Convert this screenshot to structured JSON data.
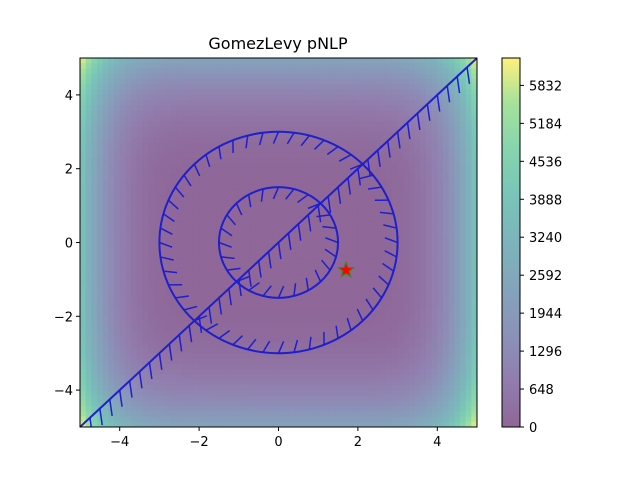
{
  "chart_data": {
    "type": "heatmap",
    "title": "GomezLevy pNLP",
    "xlabel": "",
    "ylabel": "",
    "xlim": [
      -5,
      5
    ],
    "ylim": [
      -5,
      5
    ],
    "x_ticks": [
      -4,
      -2,
      0,
      2,
      4
    ],
    "y_ticks": [
      -4,
      -2,
      0,
      2,
      4
    ],
    "x_tick_labels": [
      "−4",
      "−2",
      "0",
      "2",
      "4"
    ],
    "y_tick_labels": [
      "−4",
      "−2",
      "0",
      "2",
      "4"
    ],
    "colormap": "viridis",
    "colormap_alpha": 0.6,
    "colorbar": {
      "range": [
        0,
        6300
      ],
      "ticks": [
        0,
        648,
        1296,
        1944,
        2592,
        3240,
        3888,
        4536,
        5184,
        5832
      ],
      "tick_labels": [
        "0",
        "648",
        "1296",
        "1944",
        "2592",
        "3240",
        "3888",
        "4536",
        "5184",
        "5832"
      ]
    },
    "constraints": [
      {
        "shape": "circle",
        "center": [
          0,
          0
        ],
        "radius": 1.5,
        "hatch_side": "inside",
        "color": "#1f1fcc"
      },
      {
        "shape": "circle",
        "center": [
          0,
          0
        ],
        "radius": 3.0,
        "hatch_side": "inside",
        "color": "#1f1fcc"
      },
      {
        "shape": "line",
        "from": [
          -5,
          -5
        ],
        "to": [
          5,
          5
        ],
        "hatch_side": "lower-right",
        "color": "#1f1fcc"
      }
    ],
    "markers": [
      {
        "label": "optimum",
        "symbol": "star",
        "x": 1.7,
        "y": -0.75,
        "color": "#ff0000",
        "edge_color": "#3a8a20"
      }
    ]
  }
}
